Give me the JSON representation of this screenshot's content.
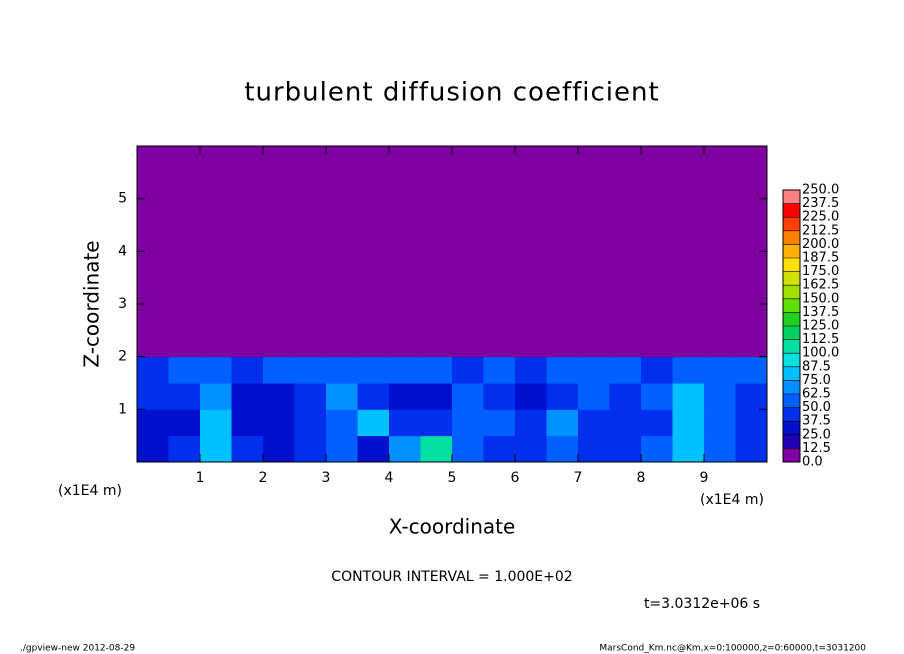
{
  "chart_data": {
    "type": "heatmap",
    "title": "turbulent diffusion coefficient",
    "xlabel": "X-coordinate",
    "ylabel": "Z-coordinate",
    "x_unit": "(x1E4 m)",
    "y_unit": "(x1E4 m)",
    "contour_note": "CONTOUR INTERVAL = 1.000E+02",
    "time_label": "t=3.0312e+06 s",
    "footer_left": "./gpview-new  2012-08-29",
    "footer_right": "MarsCond_Km.nc@Km,x=0:100000,z=0:60000,t=3031200",
    "xlim": [
      0,
      10
    ],
    "ylim": [
      0,
      6
    ],
    "xticks": [
      1,
      2,
      3,
      4,
      5,
      6,
      7,
      8,
      9
    ],
    "yticks": [
      1,
      2,
      3,
      4,
      5
    ],
    "z": [
      [
        35,
        40,
        85,
        40,
        30,
        45,
        50,
        35,
        70,
        100,
        60,
        45,
        40,
        55,
        45,
        40,
        50,
        75,
        60,
        45
      ],
      [
        30,
        35,
        75,
        35,
        30,
        40,
        55,
        75,
        45,
        40,
        55,
        60,
        45,
        70,
        45,
        40,
        40,
        80,
        55,
        40
      ],
      [
        40,
        40,
        65,
        35,
        35,
        45,
        70,
        40,
        30,
        35,
        50,
        45,
        35,
        45,
        50,
        45,
        55,
        85,
        50,
        45
      ],
      [
        45,
        50,
        55,
        45,
        55,
        60,
        60,
        55,
        50,
        55,
        45,
        50,
        45,
        50,
        55,
        60,
        45,
        55,
        50,
        55
      ],
      [
        0,
        0,
        0,
        0,
        0,
        0,
        0,
        0,
        0,
        0,
        0,
        0,
        0,
        0,
        0,
        0,
        0,
        0,
        0,
        0
      ],
      [
        0,
        0,
        0,
        0,
        0,
        0,
        0,
        0,
        0,
        0,
        0,
        0,
        0,
        0,
        0,
        0,
        0,
        0,
        0,
        0
      ],
      [
        0,
        0,
        0,
        0,
        0,
        0,
        0,
        0,
        0,
        0,
        0,
        0,
        0,
        0,
        0,
        0,
        0,
        0,
        0,
        0
      ],
      [
        0,
        0,
        0,
        0,
        0,
        0,
        0,
        0,
        0,
        0,
        0,
        0,
        0,
        0,
        0,
        0,
        0,
        0,
        0,
        0
      ],
      [
        0,
        0,
        0,
        0,
        0,
        0,
        0,
        0,
        0,
        0,
        0,
        0,
        0,
        0,
        0,
        0,
        0,
        0,
        0,
        0
      ],
      [
        0,
        0,
        0,
        0,
        0,
        0,
        0,
        0,
        0,
        0,
        0,
        0,
        0,
        0,
        0,
        0,
        0,
        0,
        0,
        0
      ],
      [
        0,
        0,
        0,
        0,
        0,
        0,
        0,
        0,
        0,
        0,
        0,
        0,
        0,
        0,
        0,
        0,
        0,
        0,
        0,
        0
      ],
      [
        0,
        0,
        0,
        0,
        0,
        0,
        0,
        0,
        0,
        0,
        0,
        0,
        0,
        0,
        0,
        0,
        0,
        0,
        0,
        0
      ]
    ],
    "colorbar_ticks": [
      {
        "value": 0,
        "label": "0.0"
      },
      12.5,
      {
        "value": 25,
        "label": "25.0"
      },
      37.5,
      {
        "value": 50,
        "label": "50.0"
      },
      62.5,
      {
        "value": 75,
        "label": "75.0"
      },
      87.5,
      {
        "value": 100,
        "label": "100.0"
      },
      112.5,
      {
        "value": 125,
        "label": "125.0"
      },
      137.5,
      {
        "value": 150,
        "label": "150.0"
      },
      162.5,
      {
        "value": 175,
        "label": "175.0"
      },
      187.5,
      {
        "value": 200,
        "label": "200.0"
      },
      212.5,
      {
        "value": 225,
        "label": "225.0"
      },
      237.5,
      {
        "value": 250,
        "label": "250.0"
      }
    ],
    "colors": [
      "#7f00a0",
      "#2000b0",
      "#0010cc",
      "#0030ee",
      "#0060ff",
      "#0090ff",
      "#00c0ff",
      "#00e0e0",
      "#00e0a0",
      "#00d060",
      "#20d020",
      "#60e000",
      "#a0e000",
      "#d0e000",
      "#ffe000",
      "#ffb000",
      "#ff8000",
      "#ff4000",
      "#ff0000",
      "#ff8080"
    ]
  }
}
